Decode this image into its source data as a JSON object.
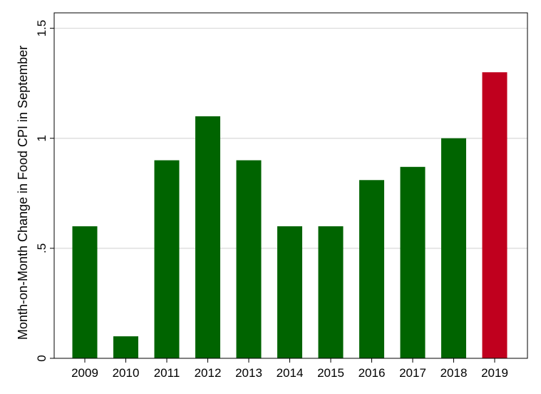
{
  "chart_data": {
    "type": "bar",
    "title": "",
    "xlabel": "",
    "ylabel": "Month-on-Month Change in Food CPI in September",
    "categories": [
      "2009",
      "2010",
      "2011",
      "2012",
      "2013",
      "2014",
      "2015",
      "2016",
      "2017",
      "2018",
      "2019"
    ],
    "values": [
      0.6,
      0.1,
      0.9,
      1.1,
      0.9,
      0.6,
      0.6,
      0.81,
      0.87,
      1.0,
      1.3
    ],
    "ylim": [
      0,
      1.5
    ],
    "yticks": [
      {
        "value": 0,
        "label": "0"
      },
      {
        "value": 0.5,
        "label": ".5"
      },
      {
        "value": 1,
        "label": "1"
      },
      {
        "value": 1.5,
        "label": "1.5"
      }
    ],
    "grid": true,
    "colors": {
      "default_bar": "#006400",
      "highlight_bar": "#c0001e",
      "gridline": "#d9d9d9"
    },
    "highlight_category": "2019"
  }
}
